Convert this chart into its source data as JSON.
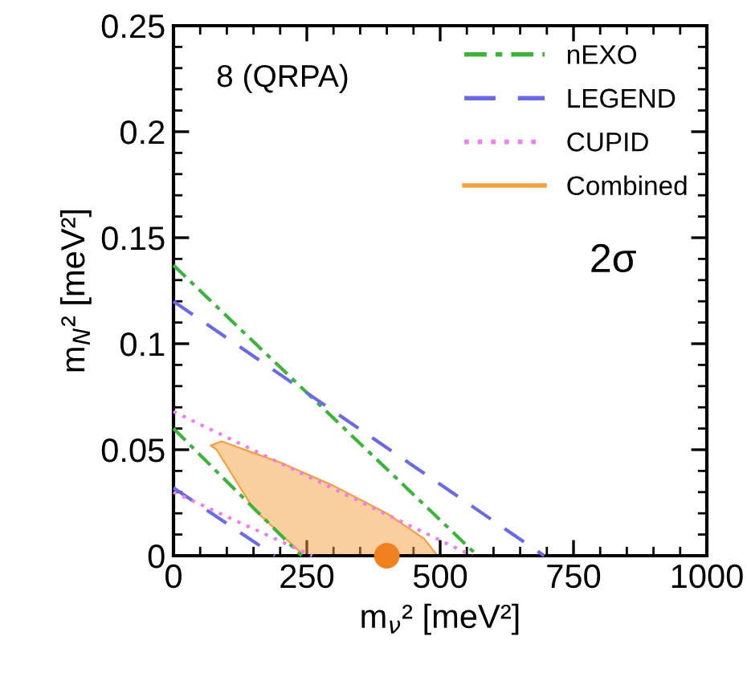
{
  "chart_data": {
    "type": "line",
    "xlabel": "m$_{ν}$² [meV²]",
    "ylabel": "m$_{N}$² [meV²]",
    "xlim": [
      0,
      1000
    ],
    "xticks": [
      0,
      250,
      500,
      750,
      1000
    ],
    "ylim": [
      0,
      0.25
    ],
    "yticks": [
      0,
      0.05,
      0.1,
      0.15,
      0.2,
      0.25
    ],
    "grid": false,
    "legend": "top right",
    "marker": "none",
    "annotations": [
      "8 (QRPA)",
      "2σ"
    ],
    "series": [
      {
        "name": "nEXO",
        "line_style": "dashdot",
        "color": "#3cb43c",
        "x": [
          0,
          570
        ],
        "values": [
          0.137,
          0
        ]
      },
      {
        "line_style": "dashdot",
        "color": "#3cb43c",
        "x": [
          0,
          240
        ],
        "values": [
          0.06,
          0
        ]
      },
      {
        "name": "LEGEND",
        "line_style": "dashed",
        "color": "#6a6ae6",
        "x": [
          0,
          695
        ],
        "values": [
          0.12,
          0
        ]
      },
      {
        "line_style": "dashed",
        "color": "#6a6ae6",
        "x": [
          0,
          190
        ],
        "values": [
          0.032,
          0
        ]
      },
      {
        "name": "CUPID",
        "line_style": "dotted",
        "color": "#f07cf0",
        "x": [
          0,
          560
        ],
        "values": [
          0.068,
          0
        ]
      },
      {
        "line_style": "dotted",
        "color": "#f07cf0",
        "x": [
          0,
          260
        ],
        "values": [
          0.03,
          0
        ]
      },
      {
        "name": "Combined",
        "type": "area",
        "color": "#f5a040",
        "x": [
          70,
          90,
          200,
          300,
          400,
          470,
          495,
          245,
          150,
          81,
          70
        ],
        "values": [
          0.052,
          0.054,
          0.044,
          0.033,
          0.02,
          0.008,
          0,
          0,
          0.022,
          0.05,
          0.052
        ]
      },
      {
        "type": "scatter",
        "marker": "circle",
        "color": "#f08020",
        "x": [
          400
        ],
        "values": [
          0
        ]
      }
    ]
  }
}
